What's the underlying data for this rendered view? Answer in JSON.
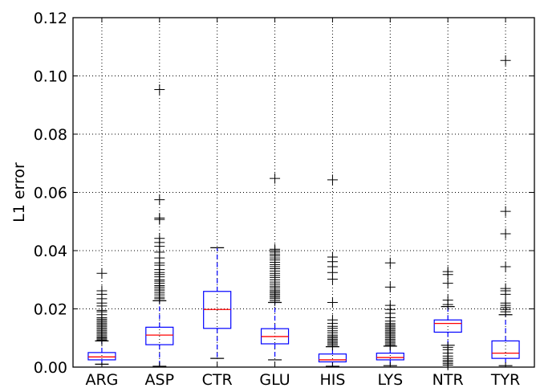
{
  "chart_data": {
    "type": "box",
    "title": "",
    "xlabel": "",
    "ylabel": "L1 error",
    "ylim": [
      0.0,
      0.12
    ],
    "y_ticks": [
      "0.00",
      "0.02",
      "0.04",
      "0.06",
      "0.08",
      "0.10",
      "0.12"
    ],
    "grid": true,
    "colors": {
      "box": "#0000ff",
      "median": "#ff0000",
      "flier": "#000000",
      "grid": "#000000"
    },
    "categories": [
      "ARG",
      "ASP",
      "CTR",
      "GLU",
      "HIS",
      "LYS",
      "NTR",
      "TYR"
    ],
    "boxes": [
      {
        "label": "ARG",
        "whislo": 0.001,
        "q1": 0.0025,
        "med": 0.0035,
        "q3": 0.005,
        "whishi": 0.009,
        "fliers": [
          0.0093,
          0.0097,
          0.0101,
          0.0105,
          0.011,
          0.0115,
          0.012,
          0.0125,
          0.013,
          0.0135,
          0.014,
          0.0145,
          0.015,
          0.0155,
          0.016,
          0.0165,
          0.017,
          0.018,
          0.019,
          0.0195,
          0.021,
          0.022,
          0.0235,
          0.025,
          0.0262,
          0.0322
        ]
      },
      {
        "label": "ASP",
        "whislo": 0.0003,
        "q1": 0.0077,
        "med": 0.011,
        "q3": 0.0137,
        "whishi": 0.0228,
        "fliers": [
          0.0235,
          0.024,
          0.0248,
          0.0255,
          0.0262,
          0.0268,
          0.0275,
          0.028,
          0.0288,
          0.0295,
          0.03,
          0.031,
          0.0318,
          0.0325,
          0.0335,
          0.035,
          0.0358,
          0.0375,
          0.0395,
          0.0415,
          0.0428,
          0.0442,
          0.0507,
          0.0512,
          0.0575,
          0.0953
        ]
      },
      {
        "label": "CTR",
        "whislo": 0.003,
        "q1": 0.0133,
        "med": 0.0198,
        "q3": 0.026,
        "whishi": 0.041,
        "fliers": []
      },
      {
        "label": "GLU",
        "whislo": 0.0025,
        "q1": 0.008,
        "med": 0.0105,
        "q3": 0.0132,
        "whishi": 0.0222,
        "fliers": [
          0.0228,
          0.0235,
          0.024,
          0.0245,
          0.025,
          0.0255,
          0.026,
          0.0265,
          0.0272,
          0.0278,
          0.0285,
          0.0292,
          0.03,
          0.0308,
          0.0315,
          0.0322,
          0.033,
          0.0338,
          0.0345,
          0.0352,
          0.036,
          0.0368,
          0.0375,
          0.0382,
          0.0388,
          0.0395,
          0.04,
          0.0405,
          0.0648
        ]
      },
      {
        "label": "HIS",
        "whislo": 0.0003,
        "q1": 0.0018,
        "med": 0.0025,
        "q3": 0.0045,
        "whishi": 0.007,
        "fliers": [
          0.0075,
          0.008,
          0.0085,
          0.009,
          0.0095,
          0.01,
          0.0105,
          0.011,
          0.0118,
          0.0125,
          0.0133,
          0.014,
          0.015,
          0.0162,
          0.0222,
          0.0302,
          0.0325,
          0.0345,
          0.0362,
          0.0378,
          0.0643
        ]
      },
      {
        "label": "LYS",
        "whislo": 0.0005,
        "q1": 0.0025,
        "med": 0.0033,
        "q3": 0.0048,
        "whishi": 0.0072,
        "fliers": [
          0.0075,
          0.008,
          0.0085,
          0.009,
          0.0095,
          0.01,
          0.0105,
          0.011,
          0.0115,
          0.012,
          0.0125,
          0.013,
          0.0135,
          0.014,
          0.0145,
          0.015,
          0.0158,
          0.017,
          0.0185,
          0.0198,
          0.0212,
          0.0275,
          0.0358
        ]
      },
      {
        "label": "NTR",
        "whislo": 0.0075,
        "q1": 0.012,
        "med": 0.015,
        "q3": 0.0162,
        "whishi": 0.0208,
        "fliers": [
          0.0007,
          0.0012,
          0.0018,
          0.0023,
          0.003,
          0.0038,
          0.0048,
          0.006,
          0.0068,
          0.0215,
          0.023,
          0.0288,
          0.0318,
          0.0328
        ]
      },
      {
        "label": "TYR",
        "whislo": 0.0005,
        "q1": 0.003,
        "med": 0.0048,
        "q3": 0.009,
        "whishi": 0.018,
        "fliers": [
          0.019,
          0.0198,
          0.0205,
          0.0212,
          0.022,
          0.025,
          0.0262,
          0.027,
          0.0345,
          0.0458,
          0.0535,
          0.1053
        ]
      }
    ]
  }
}
